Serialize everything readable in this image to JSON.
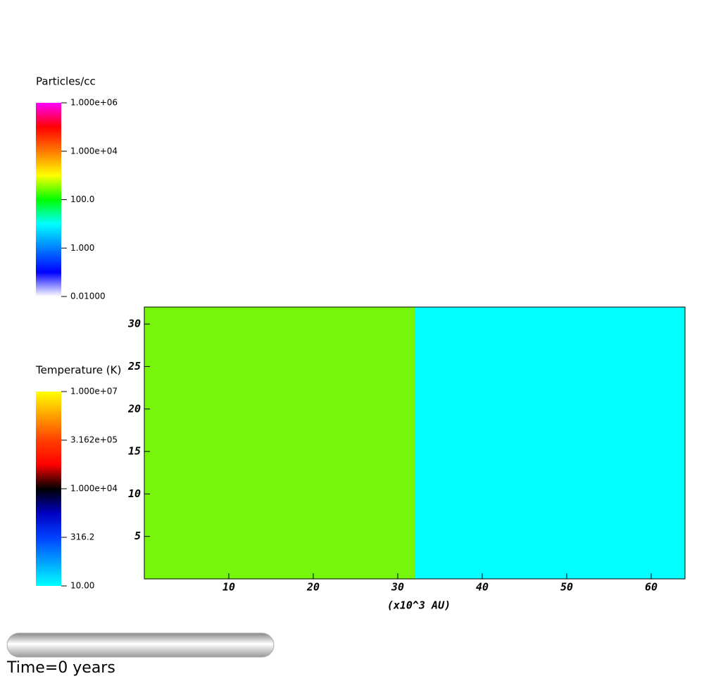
{
  "chart_data": {
    "type": "pseudocolor",
    "xlabel": "(x10^3 AU)",
    "xlim": [
      0,
      64
    ],
    "ylim": [
      0,
      32
    ],
    "xticks": [
      10,
      20,
      30,
      40,
      50,
      60
    ],
    "yticks": [
      5,
      10,
      15,
      20,
      25,
      30
    ],
    "regions": [
      {
        "x": [
          0,
          32
        ],
        "y": [
          0,
          32
        ],
        "color": "#76f60a"
      },
      {
        "x": [
          32,
          64
        ],
        "y": [
          0,
          32
        ],
        "color": "#00ffff"
      }
    ],
    "colorbars": [
      {
        "title": "Particles/cc",
        "log": true,
        "colors": [
          "#ff00ff",
          "#ff0000",
          "#ff7a00",
          "#ffff00",
          "#00ff00",
          "#00ffff",
          "#0080ff",
          "#0000ff",
          "#ffffff"
        ],
        "ticks": [
          {
            "value": 1000000,
            "label": "1.000e+06"
          },
          {
            "value": 10000,
            "label": "1.000e+04"
          },
          {
            "value": 100,
            "label": "100.0"
          },
          {
            "value": 1,
            "label": "1.000"
          },
          {
            "value": 0.01,
            "label": "0.01000"
          }
        ]
      },
      {
        "title": "Temperature (K)",
        "log": true,
        "colors": [
          "#ffff00",
          "#ffa000",
          "#ff4000",
          "#ff0000",
          "#000000",
          "#0000c0",
          "#0040ff",
          "#00a0ff",
          "#00ffff"
        ],
        "ticks": [
          {
            "value": 10000000,
            "label": "1.000e+07"
          },
          {
            "value": 316200,
            "label": "3.162e+05"
          },
          {
            "value": 10000,
            "label": "1.000e+04"
          },
          {
            "value": 316.2,
            "label": "316.2"
          },
          {
            "value": 10,
            "label": "10.00"
          }
        ]
      }
    ],
    "time_label": "Time=0 years"
  }
}
